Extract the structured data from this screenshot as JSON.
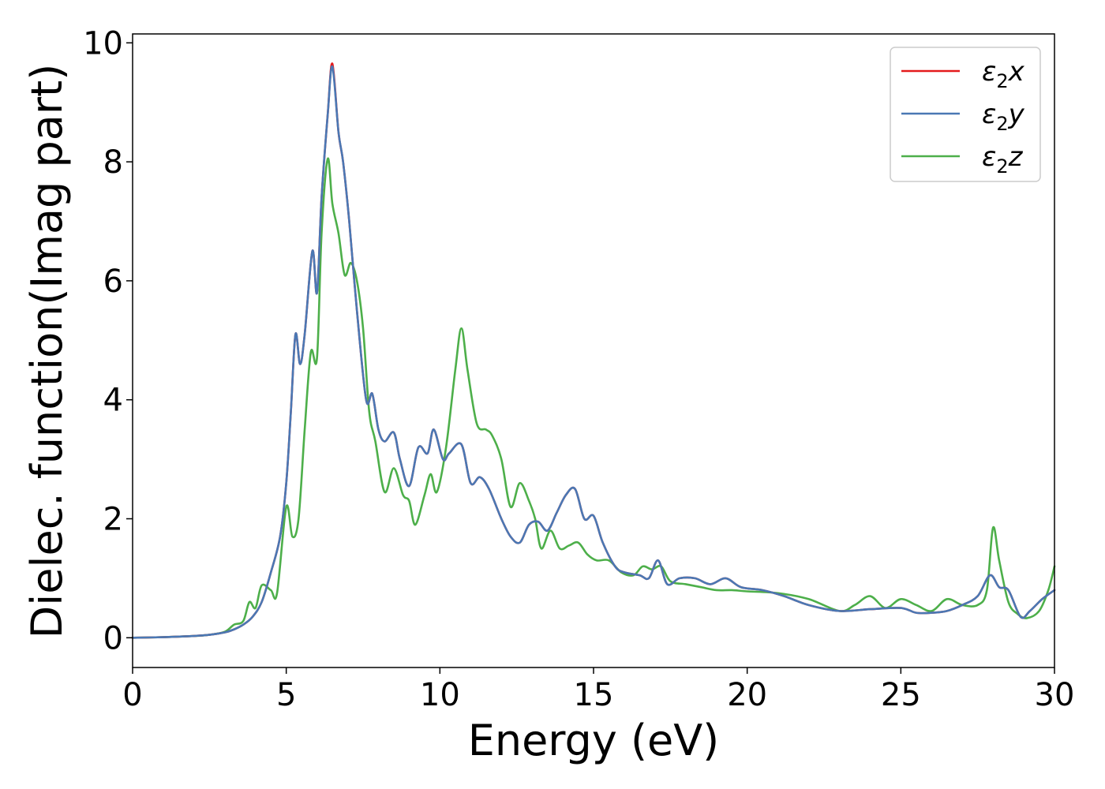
{
  "chart_data": {
    "type": "line",
    "xlabel": "Energy (eV)",
    "ylabel": "Dielec. function(Imag part)",
    "xlim": [
      0,
      30
    ],
    "ylim": [
      -0.5,
      10.15
    ],
    "xticks": [
      0,
      5,
      10,
      15,
      20,
      25,
      30
    ],
    "xtick_labels": [
      "0",
      "5",
      "10",
      "15",
      "20",
      "25",
      "30"
    ],
    "yticks": [
      0,
      2,
      4,
      6,
      8,
      10
    ],
    "ytick_labels": [
      "0",
      "2",
      "4",
      "6",
      "8",
      "10"
    ],
    "grid": false,
    "legend_position": "top-right",
    "series": [
      {
        "name": "ε₂x",
        "legend_main": "ε",
        "legend_sub": "2",
        "legend_suffix": "x",
        "color": "#e41a1c",
        "x": [
          0,
          1,
          2,
          2.5,
          3,
          3.3,
          3.6,
          3.9,
          4.2,
          4.5,
          4.8,
          5.0,
          5.15,
          5.3,
          5.45,
          5.6,
          5.85,
          6.0,
          6.15,
          6.35,
          6.5,
          6.7,
          6.85,
          7.05,
          7.3,
          7.6,
          7.8,
          8.0,
          8.2,
          8.5,
          8.7,
          9.0,
          9.3,
          9.6,
          9.8,
          10.1,
          10.3,
          10.7,
          11.0,
          11.3,
          11.6,
          12.0,
          12.3,
          12.6,
          12.9,
          13.2,
          13.5,
          13.8,
          14.1,
          14.4,
          14.7,
          15.0,
          15.3,
          15.7,
          16.0,
          16.5,
          16.8,
          17.1,
          17.4,
          17.8,
          18.3,
          18.8,
          19.3,
          19.8,
          20.5,
          21.2,
          22.0,
          23.0,
          24.0,
          25.0,
          25.5,
          26.0,
          26.5,
          27.0,
          27.5,
          27.9,
          28.2,
          28.5,
          28.9,
          29.2,
          29.6,
          30.0
        ],
        "values": [
          0,
          0.01,
          0.03,
          0.05,
          0.09,
          0.14,
          0.22,
          0.35,
          0.6,
          1.1,
          1.7,
          2.6,
          3.8,
          5.1,
          4.6,
          5.1,
          6.5,
          5.8,
          7.4,
          8.8,
          9.65,
          8.5,
          8.0,
          7.0,
          5.5,
          4.0,
          4.1,
          3.5,
          3.3,
          3.45,
          3.0,
          2.55,
          3.2,
          3.1,
          3.5,
          3.0,
          3.1,
          3.25,
          2.6,
          2.7,
          2.5,
          2.0,
          1.7,
          1.6,
          1.9,
          1.95,
          1.8,
          2.1,
          2.4,
          2.5,
          2.0,
          2.05,
          1.6,
          1.2,
          1.1,
          1.05,
          1.0,
          1.3,
          0.9,
          1.0,
          1.0,
          0.9,
          1.0,
          0.85,
          0.8,
          0.7,
          0.55,
          0.45,
          0.48,
          0.5,
          0.42,
          0.42,
          0.45,
          0.55,
          0.7,
          1.05,
          0.85,
          0.8,
          0.35,
          0.45,
          0.65,
          0.8
        ]
      },
      {
        "name": "ε₂y",
        "legend_main": "ε",
        "legend_sub": "2",
        "legend_suffix": "y",
        "color": "#4a78b4",
        "x": [
          0,
          1,
          2,
          2.5,
          3,
          3.3,
          3.6,
          3.9,
          4.2,
          4.5,
          4.8,
          5.0,
          5.15,
          5.3,
          5.45,
          5.6,
          5.85,
          6.0,
          6.15,
          6.35,
          6.5,
          6.7,
          6.85,
          7.05,
          7.3,
          7.6,
          7.8,
          8.0,
          8.2,
          8.5,
          8.7,
          9.0,
          9.3,
          9.6,
          9.8,
          10.1,
          10.3,
          10.7,
          11.0,
          11.3,
          11.6,
          12.0,
          12.3,
          12.6,
          12.9,
          13.2,
          13.5,
          13.8,
          14.1,
          14.4,
          14.7,
          15.0,
          15.3,
          15.7,
          16.0,
          16.5,
          16.8,
          17.1,
          17.4,
          17.8,
          18.3,
          18.8,
          19.3,
          19.8,
          20.5,
          21.2,
          22.0,
          23.0,
          24.0,
          25.0,
          25.5,
          26.0,
          26.5,
          27.0,
          27.5,
          27.9,
          28.2,
          28.5,
          28.9,
          29.2,
          29.6,
          30.0
        ],
        "values": [
          0,
          0.01,
          0.03,
          0.05,
          0.09,
          0.14,
          0.22,
          0.35,
          0.6,
          1.1,
          1.7,
          2.6,
          3.8,
          5.1,
          4.6,
          5.1,
          6.5,
          5.8,
          7.4,
          8.8,
          9.6,
          8.5,
          8.0,
          7.0,
          5.5,
          4.0,
          4.1,
          3.5,
          3.3,
          3.45,
          3.0,
          2.55,
          3.2,
          3.1,
          3.5,
          3.0,
          3.1,
          3.25,
          2.6,
          2.7,
          2.5,
          2.0,
          1.7,
          1.6,
          1.9,
          1.95,
          1.8,
          2.1,
          2.4,
          2.5,
          2.0,
          2.05,
          1.6,
          1.2,
          1.1,
          1.05,
          1.0,
          1.3,
          0.9,
          1.0,
          1.0,
          0.9,
          1.0,
          0.85,
          0.8,
          0.7,
          0.55,
          0.45,
          0.48,
          0.5,
          0.42,
          0.42,
          0.45,
          0.55,
          0.7,
          1.05,
          0.85,
          0.8,
          0.35,
          0.45,
          0.65,
          0.8
        ]
      },
      {
        "name": "ε₂z",
        "legend_main": "ε",
        "legend_sub": "2",
        "legend_suffix": "z",
        "color": "#4daf4a",
        "x": [
          0,
          1,
          2,
          2.5,
          3,
          3.3,
          3.6,
          3.8,
          4.0,
          4.2,
          4.5,
          4.7,
          5.0,
          5.2,
          5.4,
          5.6,
          5.8,
          6.0,
          6.15,
          6.35,
          6.5,
          6.7,
          6.9,
          7.1,
          7.3,
          7.5,
          7.7,
          7.9,
          8.2,
          8.5,
          8.8,
          9.0,
          9.2,
          9.5,
          9.7,
          9.9,
          10.2,
          10.5,
          10.7,
          10.9,
          11.2,
          11.5,
          11.7,
          12.0,
          12.3,
          12.6,
          12.9,
          13.1,
          13.3,
          13.6,
          13.9,
          14.2,
          14.5,
          14.8,
          15.1,
          15.5,
          15.9,
          16.3,
          16.6,
          16.9,
          17.2,
          17.5,
          18.0,
          18.5,
          19.0,
          19.5,
          20.0,
          21.0,
          22.0,
          23.0,
          23.5,
          24.0,
          24.5,
          25.0,
          25.5,
          26.0,
          26.5,
          27.0,
          27.5,
          27.8,
          28.0,
          28.2,
          28.5,
          28.8,
          29.1,
          29.5,
          29.8,
          30.0
        ],
        "values": [
          0,
          0.01,
          0.03,
          0.05,
          0.1,
          0.22,
          0.28,
          0.6,
          0.5,
          0.88,
          0.8,
          0.75,
          2.2,
          1.7,
          2.0,
          3.5,
          4.8,
          4.7,
          6.8,
          8.05,
          7.3,
          6.8,
          6.1,
          6.3,
          6.0,
          5.2,
          3.8,
          3.3,
          2.45,
          2.85,
          2.4,
          2.3,
          1.9,
          2.4,
          2.75,
          2.45,
          3.2,
          4.5,
          5.2,
          4.5,
          3.6,
          3.5,
          3.4,
          3.0,
          2.2,
          2.6,
          2.3,
          2.0,
          1.5,
          1.8,
          1.5,
          1.55,
          1.6,
          1.4,
          1.3,
          1.3,
          1.1,
          1.05,
          1.2,
          1.15,
          1.2,
          0.95,
          0.9,
          0.85,
          0.8,
          0.8,
          0.78,
          0.75,
          0.65,
          0.45,
          0.55,
          0.7,
          0.5,
          0.65,
          0.55,
          0.45,
          0.65,
          0.55,
          0.55,
          0.8,
          1.85,
          1.3,
          0.6,
          0.4,
          0.33,
          0.45,
          0.8,
          1.2
        ]
      }
    ]
  }
}
